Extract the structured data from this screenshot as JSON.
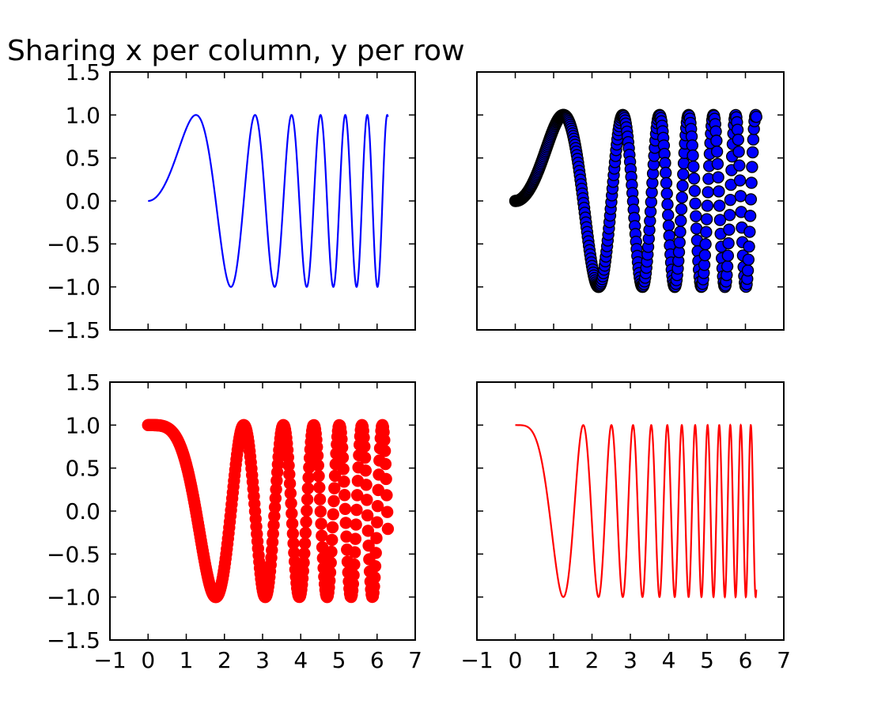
{
  "title": "Sharing x per column, y per row",
  "chart_data": [
    {
      "position": "top-left",
      "type": "line",
      "function": "sin(x^2)",
      "x_range": [
        0,
        6.2832
      ],
      "color": "#0000ff",
      "xlim": [
        -1,
        7
      ],
      "ylim": [
        -1.5,
        1.5
      ],
      "xticks": [
        -1,
        0,
        1,
        2,
        3,
        4,
        5,
        6,
        7
      ],
      "yticks": [
        -1.5,
        -1.0,
        -0.5,
        0.0,
        0.5,
        1.0,
        1.5
      ],
      "ytick_labels": [
        "−1.5",
        "−1.0",
        "−0.5",
        "0.0",
        "0.5",
        "1.0",
        "1.5"
      ],
      "show_xtick_labels": false,
      "show_ytick_labels": true
    },
    {
      "position": "top-right",
      "type": "scatter",
      "function": "sin(x^2)",
      "x_range": [
        0,
        6.2832
      ],
      "n_points": 400,
      "color": "#0000ff",
      "edge_color": "#000000",
      "xlim": [
        -1,
        7
      ],
      "ylim": [
        -1.5,
        1.5
      ],
      "xticks": [
        -1,
        0,
        1,
        2,
        3,
        4,
        5,
        6,
        7
      ],
      "yticks": [
        -1.5,
        -1.0,
        -0.5,
        0.0,
        0.5,
        1.0,
        1.5
      ],
      "show_xtick_labels": false,
      "show_ytick_labels": false
    },
    {
      "position": "bottom-left",
      "type": "scatter",
      "function": "cos(x^2)",
      "x_range": [
        0,
        6.2832
      ],
      "n_points": 400,
      "color": "#ff0000",
      "edge_color": "#ff0000",
      "xlim": [
        -1,
        7
      ],
      "ylim": [
        -1.5,
        1.5
      ],
      "xticks": [
        -1,
        0,
        1,
        2,
        3,
        4,
        5,
        6,
        7
      ],
      "xtick_labels": [
        "−1",
        "0",
        "1",
        "2",
        "3",
        "4",
        "5",
        "6",
        "7"
      ],
      "yticks": [
        -1.5,
        -1.0,
        -0.5,
        0.0,
        0.5,
        1.0,
        1.5
      ],
      "ytick_labels": [
        "−1.5",
        "−1.0",
        "−0.5",
        "0.0",
        "0.5",
        "1.0",
        "1.5"
      ],
      "show_xtick_labels": true,
      "show_ytick_labels": true
    },
    {
      "position": "bottom-right",
      "type": "line",
      "function": "cos(2x^2)",
      "x_range": [
        0,
        6.2832
      ],
      "color": "#ff0000",
      "xlim": [
        -1,
        7
      ],
      "ylim": [
        -1.5,
        1.5
      ],
      "xticks": [
        -1,
        0,
        1,
        2,
        3,
        4,
        5,
        6,
        7
      ],
      "xtick_labels": [
        "−1",
        "0",
        "1",
        "2",
        "3",
        "4",
        "5",
        "6",
        "7"
      ],
      "yticks": [
        -1.5,
        -1.0,
        -0.5,
        0.0,
        0.5,
        1.0,
        1.5
      ],
      "show_xtick_labels": true,
      "show_ytick_labels": false
    }
  ]
}
